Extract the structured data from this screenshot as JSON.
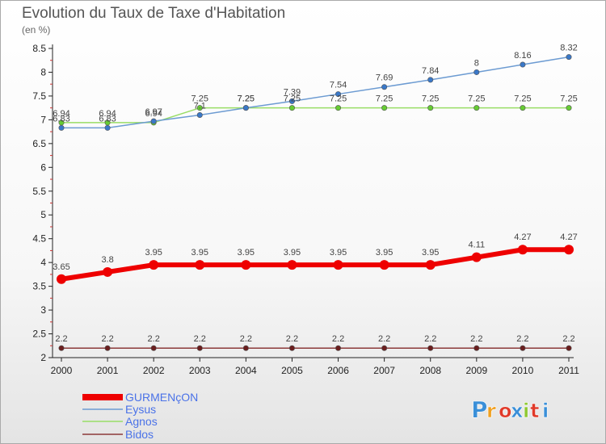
{
  "chart_data": {
    "type": "line",
    "title": "Evolution du Taux de Taxe d'Habitation",
    "subtitle": "(en %)",
    "x": [
      "2000",
      "2001",
      "2002",
      "2003",
      "2004",
      "2005",
      "2006",
      "2007",
      "2008",
      "2009",
      "2010",
      "2011"
    ],
    "ylim": [
      2,
      8.5
    ],
    "yticks": [
      "2",
      "2.5",
      "3",
      "3.5",
      "4",
      "4.5",
      "5",
      "5.5",
      "6",
      "6.5",
      "7",
      "7.5",
      "8",
      "8.5"
    ],
    "grid": false,
    "legend_position": "bottom-left",
    "series": [
      {
        "name": "GURMENçON",
        "color": "#ee0000",
        "values": [
          3.65,
          3.8,
          3.95,
          3.95,
          3.95,
          3.95,
          3.95,
          3.95,
          3.95,
          4.11,
          4.27,
          4.27
        ],
        "labels": [
          "3.65",
          "3.8",
          "3.95",
          "3.95",
          "3.95",
          "3.95",
          "3.95",
          "3.95",
          "3.95",
          "4.11",
          "4.27",
          "4.27"
        ]
      },
      {
        "name": "Eysus",
        "color": "#6c9bd2",
        "marker": "#3a78c8",
        "values": [
          6.83,
          6.83,
          6.97,
          7.1,
          7.25,
          7.39,
          7.54,
          7.69,
          7.84,
          8.0,
          8.16,
          8.32
        ],
        "labels": [
          "6.83",
          "6.83",
          "6.97",
          "7.1",
          "7.25",
          "7.39",
          "7.54",
          "7.69",
          "7.84",
          "8",
          "8.16",
          "8.32"
        ]
      },
      {
        "name": "Agnos",
        "color": "#99dd66",
        "marker": "#66cc33",
        "values": [
          6.94,
          6.94,
          6.94,
          7.25,
          7.25,
          7.25,
          7.25,
          7.25,
          7.25,
          7.25,
          7.25,
          7.25
        ],
        "labels": [
          "6.94",
          "6.94",
          "6.94",
          "7.25",
          "7.25",
          "7.25",
          "7.25",
          "7.25",
          "7.25",
          "7.25",
          "7.25",
          "7.25"
        ]
      },
      {
        "name": "Bidos",
        "color": "#8b3a3a",
        "marker": "#6b1e1e",
        "values": [
          2.2,
          2.2,
          2.2,
          2.2,
          2.2,
          2.2,
          2.2,
          2.2,
          2.2,
          2.2,
          2.2,
          2.2
        ],
        "labels": [
          "2.2",
          "2.2",
          "2.2",
          "2.2",
          "2.2",
          "2.2",
          "2.2",
          "2.2",
          "2.2",
          "2.2",
          "2.2",
          "2.2"
        ]
      }
    ]
  },
  "logo": {
    "text": "Proxiti"
  }
}
